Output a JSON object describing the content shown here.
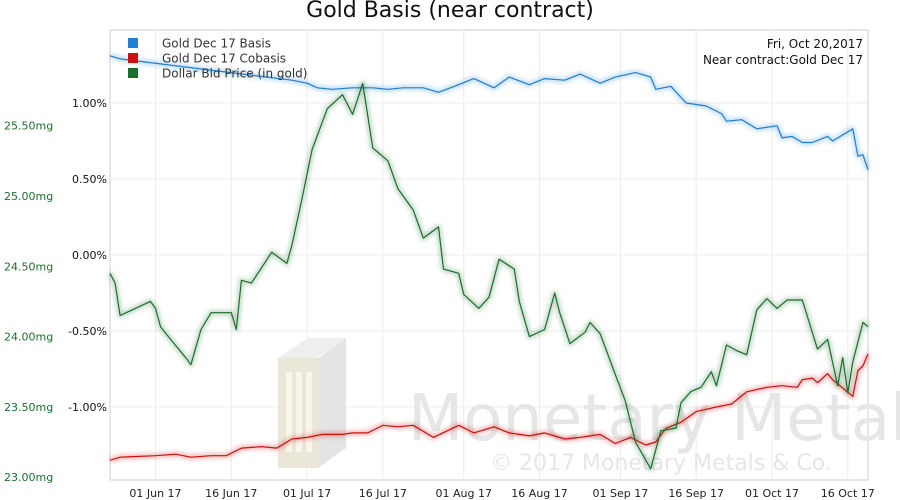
{
  "chart_data": {
    "type": "line",
    "title": "Gold Basis (near contract)",
    "info": {
      "date": "Fri, Oct 20,2017",
      "contract": "Near contract:Gold Dec 17"
    },
    "x_ticks": [
      "01 Jun 17",
      "16 Jun 17",
      "01 Jul 17",
      "16 Jul 17",
      "01 Aug 17",
      "16 Aug 17",
      "01 Sep 17",
      "16 Sep 17",
      "01 Oct 17",
      "16 Oct 17"
    ],
    "x_range": [
      "2017-05-23",
      "2017-10-20"
    ],
    "y_left": {
      "ticks": [
        "25.50mg",
        "25.00mg",
        "24.50mg",
        "24.00mg",
        "23.50mg",
        "23.00mg"
      ],
      "tick_values": [
        25.5,
        25.0,
        24.5,
        24.0,
        23.5,
        23.0
      ],
      "range": [
        22.98,
        26.18
      ],
      "color": "#1a6e2e"
    },
    "y_right": {
      "ticks": [
        "1.00%",
        "0.50%",
        "0.00%",
        "-0.50%",
        "-1.00%"
      ],
      "tick_values": [
        1.0,
        0.5,
        0.0,
        -0.5,
        -1.0
      ],
      "range": [
        -1.48,
        1.48
      ],
      "color": "#111111"
    },
    "grid": true,
    "legend_position": "top-left",
    "series": [
      {
        "name": "Gold Dec 17 Basis",
        "color": "#1f7fd0",
        "axis": "right",
        "points": [
          [
            "2017-05-23",
            1.31
          ],
          [
            "2017-05-25",
            1.29
          ],
          [
            "2017-06-28",
            1.15
          ],
          [
            "2017-07-01",
            1.13
          ],
          [
            "2017-07-03",
            1.1
          ],
          [
            "2017-07-06",
            1.09
          ],
          [
            "2017-07-10",
            1.1
          ],
          [
            "2017-07-14",
            1.1
          ],
          [
            "2017-07-17",
            1.09
          ],
          [
            "2017-07-20",
            1.1
          ],
          [
            "2017-07-24",
            1.1
          ],
          [
            "2017-07-27",
            1.07
          ],
          [
            "2017-07-31",
            1.12
          ],
          [
            "2017-08-03",
            1.16
          ],
          [
            "2017-08-07",
            1.1
          ],
          [
            "2017-08-10",
            1.17
          ],
          [
            "2017-08-14",
            1.12
          ],
          [
            "2017-08-17",
            1.16
          ],
          [
            "2017-08-21",
            1.15
          ],
          [
            "2017-08-24",
            1.19
          ],
          [
            "2017-08-28",
            1.13
          ],
          [
            "2017-08-31",
            1.17
          ],
          [
            "2017-09-04",
            1.2
          ],
          [
            "2017-09-07",
            1.17
          ],
          [
            "2017-09-08",
            1.09
          ],
          [
            "2017-09-11",
            1.11
          ],
          [
            "2017-09-14",
            1.0
          ],
          [
            "2017-09-18",
            0.98
          ],
          [
            "2017-09-21",
            0.93
          ],
          [
            "2017-09-22",
            0.88
          ],
          [
            "2017-09-25",
            0.89
          ],
          [
            "2017-09-28",
            0.83
          ],
          [
            "2017-10-02",
            0.85
          ],
          [
            "2017-10-03",
            0.77
          ],
          [
            "2017-10-05",
            0.78
          ],
          [
            "2017-10-07",
            0.74
          ],
          [
            "2017-10-09",
            0.74
          ],
          [
            "2017-10-12",
            0.78
          ],
          [
            "2017-10-13",
            0.75
          ],
          [
            "2017-10-17",
            0.83
          ],
          [
            "2017-10-18",
            0.65
          ],
          [
            "2017-10-19",
            0.66
          ],
          [
            "2017-10-20",
            0.56
          ]
        ]
      },
      {
        "name": "Gold Dec 17 Cobasis",
        "color": "#cc1111",
        "axis": "right",
        "points": [
          [
            "2017-05-23",
            -1.35
          ],
          [
            "2017-05-25",
            -1.33
          ],
          [
            "2017-06-01",
            -1.32
          ],
          [
            "2017-06-05",
            -1.31
          ],
          [
            "2017-06-08",
            -1.33
          ],
          [
            "2017-06-12",
            -1.32
          ],
          [
            "2017-06-15",
            -1.32
          ],
          [
            "2017-06-18",
            -1.27
          ],
          [
            "2017-06-22",
            -1.26
          ],
          [
            "2017-06-25",
            -1.27
          ],
          [
            "2017-06-28",
            -1.21
          ],
          [
            "2017-07-01",
            -1.2
          ],
          [
            "2017-07-04",
            -1.18
          ],
          [
            "2017-07-08",
            -1.18
          ],
          [
            "2017-07-10",
            -1.17
          ],
          [
            "2017-07-13",
            -1.17
          ],
          [
            "2017-07-16",
            -1.12
          ],
          [
            "2017-07-19",
            -1.13
          ],
          [
            "2017-07-22",
            -1.12
          ],
          [
            "2017-07-26",
            -1.2
          ],
          [
            "2017-07-31",
            -1.12
          ],
          [
            "2017-08-03",
            -1.17
          ],
          [
            "2017-08-07",
            -1.13
          ],
          [
            "2017-08-10",
            -1.17
          ],
          [
            "2017-08-14",
            -1.19
          ],
          [
            "2017-08-17",
            -1.17
          ],
          [
            "2017-08-21",
            -1.21
          ],
          [
            "2017-08-24",
            -1.2
          ],
          [
            "2017-08-28",
            -1.18
          ],
          [
            "2017-08-31",
            -1.24
          ],
          [
            "2017-09-03",
            -1.2
          ],
          [
            "2017-09-06",
            -1.25
          ],
          [
            "2017-09-08",
            -1.23
          ],
          [
            "2017-09-10",
            -1.14
          ],
          [
            "2017-09-13",
            -1.1
          ],
          [
            "2017-09-16",
            -1.03
          ],
          [
            "2017-09-20",
            -1.0
          ],
          [
            "2017-09-23",
            -0.98
          ],
          [
            "2017-09-26",
            -0.9
          ],
          [
            "2017-09-30",
            -0.87
          ],
          [
            "2017-10-03",
            -0.86
          ],
          [
            "2017-10-06",
            -0.87
          ],
          [
            "2017-10-07",
            -0.82
          ],
          [
            "2017-10-09",
            -0.81
          ],
          [
            "2017-10-10",
            -0.84
          ],
          [
            "2017-10-12",
            -0.78
          ],
          [
            "2017-10-13",
            -0.82
          ],
          [
            "2017-10-17",
            -0.93
          ],
          [
            "2017-10-18",
            -0.76
          ],
          [
            "2017-10-19",
            -0.73
          ],
          [
            "2017-10-20",
            -0.65
          ]
        ]
      },
      {
        "name": "Dollar Bid Price (in gold)",
        "color": "#1a6e2e",
        "axis": "left",
        "points": [
          [
            "2017-05-23",
            24.45
          ],
          [
            "2017-05-24",
            24.38
          ],
          [
            "2017-05-25",
            24.15
          ],
          [
            "2017-05-28",
            24.2
          ],
          [
            "2017-05-31",
            24.25
          ],
          [
            "2017-06-01",
            24.2
          ],
          [
            "2017-06-02",
            24.07
          ],
          [
            "2017-06-04",
            23.98
          ],
          [
            "2017-06-07",
            23.85
          ],
          [
            "2017-06-08",
            23.8
          ],
          [
            "2017-06-10",
            24.05
          ],
          [
            "2017-06-12",
            24.17
          ],
          [
            "2017-06-16",
            24.17
          ],
          [
            "2017-06-17",
            24.05
          ],
          [
            "2017-06-18",
            24.4
          ],
          [
            "2017-06-20",
            24.38
          ],
          [
            "2017-06-24",
            24.6
          ],
          [
            "2017-06-27",
            24.52
          ],
          [
            "2017-06-28",
            24.65
          ],
          [
            "2017-06-30",
            24.98
          ],
          [
            "2017-07-02",
            25.33
          ],
          [
            "2017-07-05",
            25.62
          ],
          [
            "2017-07-08",
            25.72
          ],
          [
            "2017-07-10",
            25.58
          ],
          [
            "2017-07-12",
            25.8
          ],
          [
            "2017-07-14",
            25.34
          ],
          [
            "2017-07-17",
            25.25
          ],
          [
            "2017-07-19",
            25.05
          ],
          [
            "2017-07-22",
            24.9
          ],
          [
            "2017-07-24",
            24.7
          ],
          [
            "2017-07-27",
            24.78
          ],
          [
            "2017-07-28",
            24.48
          ],
          [
            "2017-07-31",
            24.45
          ],
          [
            "2017-08-01",
            24.3
          ],
          [
            "2017-08-04",
            24.2
          ],
          [
            "2017-08-06",
            24.28
          ],
          [
            "2017-08-08",
            24.55
          ],
          [
            "2017-08-11",
            24.48
          ],
          [
            "2017-08-12",
            24.25
          ],
          [
            "2017-08-14",
            24.0
          ],
          [
            "2017-08-17",
            24.05
          ],
          [
            "2017-08-19",
            24.31
          ],
          [
            "2017-08-20",
            24.17
          ],
          [
            "2017-08-22",
            23.95
          ],
          [
            "2017-08-25",
            24.03
          ],
          [
            "2017-08-26",
            24.1
          ],
          [
            "2017-08-28",
            24.02
          ],
          [
            "2017-08-31",
            23.73
          ],
          [
            "2017-09-02",
            23.54
          ],
          [
            "2017-09-04",
            23.25
          ],
          [
            "2017-09-07",
            23.06
          ],
          [
            "2017-09-09",
            23.33
          ],
          [
            "2017-09-12",
            23.35
          ],
          [
            "2017-09-13",
            23.53
          ],
          [
            "2017-09-15",
            23.61
          ],
          [
            "2017-09-17",
            23.64
          ],
          [
            "2017-09-19",
            23.75
          ],
          [
            "2017-09-20",
            23.65
          ],
          [
            "2017-09-22",
            23.94
          ],
          [
            "2017-09-24",
            23.9
          ],
          [
            "2017-09-26",
            23.87
          ],
          [
            "2017-09-28",
            24.19
          ],
          [
            "2017-09-30",
            24.27
          ],
          [
            "2017-10-02",
            24.2
          ],
          [
            "2017-10-04",
            24.26
          ],
          [
            "2017-10-07",
            24.26
          ],
          [
            "2017-10-10",
            23.91
          ],
          [
            "2017-10-12",
            23.98
          ],
          [
            "2017-10-14",
            23.65
          ],
          [
            "2017-10-15",
            23.85
          ],
          [
            "2017-10-16",
            23.6
          ],
          [
            "2017-10-17",
            23.82
          ],
          [
            "2017-10-19",
            24.1
          ],
          [
            "2017-10-20",
            24.07
          ]
        ]
      }
    ]
  },
  "watermark": {
    "brand": "Monetary Metals",
    "copyright": "© 2017 Monetary Metals & Co."
  }
}
